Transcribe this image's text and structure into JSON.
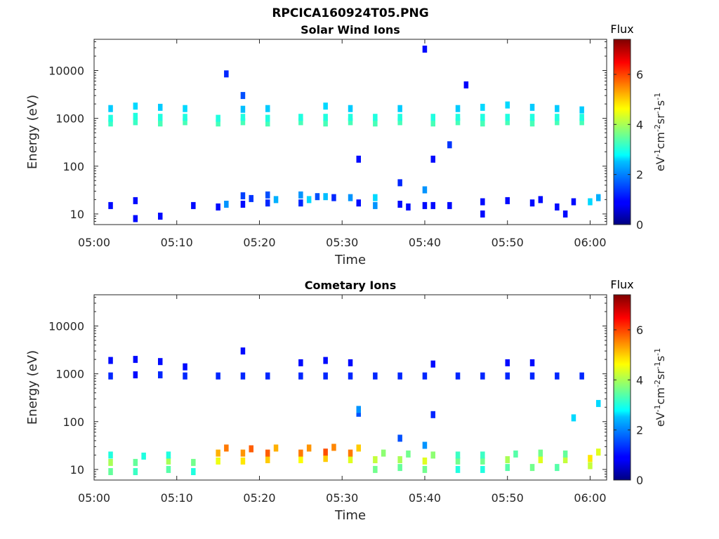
{
  "figure_title": "RPCICA160924T05.PNG",
  "chart_data": [
    {
      "type": "heatmap",
      "title": "Solar Wind Ions",
      "xlabel": "Time",
      "ylabel": "Energy (eV)",
      "y_scale": "log",
      "ylim": [
        6,
        45000
      ],
      "y_ticks": [
        10,
        100,
        1000,
        10000
      ],
      "y_tick_labels": [
        "10",
        "100",
        "1000",
        "10000"
      ],
      "x_tick_labels": [
        "05:00",
        "05:10",
        "05:20",
        "05:30",
        "05:40",
        "05:50",
        "06:00"
      ],
      "xlim": [
        "05:00",
        "06:02"
      ],
      "colorbar": {
        "title": "Flux",
        "label": "eV-1cm-2sr-1s-1",
        "min": 0,
        "max": 7.4,
        "ticks": [
          0,
          2,
          4,
          6
        ],
        "colormap": "jet"
      },
      "grid": false,
      "cells": [
        [
          "05:02",
          800,
          3.2
        ],
        [
          "05:02",
          1000,
          3.0
        ],
        [
          "05:02",
          1600,
          2.4
        ],
        [
          "05:05",
          850,
          3.2
        ],
        [
          "05:05",
          1100,
          3.0
        ],
        [
          "05:05",
          1800,
          2.5
        ],
        [
          "05:08",
          800,
          3.3
        ],
        [
          "05:08",
          1050,
          3.0
        ],
        [
          "05:08",
          1700,
          2.4
        ],
        [
          "05:11",
          850,
          3.3
        ],
        [
          "05:11",
          1050,
          3.0
        ],
        [
          "05:11",
          1600,
          2.5
        ],
        [
          "05:15",
          800,
          3.3
        ],
        [
          "05:15",
          1000,
          3.0
        ],
        [
          "05:18",
          850,
          3.3
        ],
        [
          "05:18",
          1050,
          3.0
        ],
        [
          "05:18",
          1550,
          2.3
        ],
        [
          "05:21",
          800,
          3.3
        ],
        [
          "05:21",
          1000,
          3.0
        ],
        [
          "05:21",
          1600,
          2.4
        ],
        [
          "05:25",
          850,
          3.3
        ],
        [
          "05:25",
          1050,
          3.0
        ],
        [
          "05:28",
          800,
          3.3
        ],
        [
          "05:28",
          1050,
          3.0
        ],
        [
          "05:28",
          1800,
          2.5
        ],
        [
          "05:31",
          850,
          3.3
        ],
        [
          "05:31",
          1050,
          3.0
        ],
        [
          "05:31",
          1600,
          2.4
        ],
        [
          "05:34",
          800,
          3.3
        ],
        [
          "05:34",
          1050,
          3.0
        ],
        [
          "05:37",
          850,
          3.3
        ],
        [
          "05:37",
          1050,
          3.0
        ],
        [
          "05:37",
          1600,
          2.4
        ],
        [
          "05:41",
          800,
          3.3
        ],
        [
          "05:41",
          1050,
          3.0
        ],
        [
          "05:44",
          850,
          3.3
        ],
        [
          "05:44",
          1050,
          3.0
        ],
        [
          "05:44",
          1600,
          2.4
        ],
        [
          "05:47",
          800,
          3.3
        ],
        [
          "05:47",
          1050,
          3.0
        ],
        [
          "05:47",
          1700,
          2.5
        ],
        [
          "05:50",
          850,
          3.3
        ],
        [
          "05:50",
          1050,
          3.0
        ],
        [
          "05:50",
          1900,
          2.5
        ],
        [
          "05:53",
          800,
          3.3
        ],
        [
          "05:53",
          1050,
          3.0
        ],
        [
          "05:53",
          1700,
          2.4
        ],
        [
          "05:56",
          850,
          3.3
        ],
        [
          "05:56",
          1050,
          3.0
        ],
        [
          "05:56",
          1600,
          2.4
        ],
        [
          "05:59",
          850,
          3.3
        ],
        [
          "05:59",
          1050,
          3.0
        ],
        [
          "05:59",
          1500,
          2.4
        ],
        [
          "05:02",
          15,
          1.0
        ],
        [
          "05:05",
          8,
          1.0
        ],
        [
          "05:05",
          19,
          1.0
        ],
        [
          "05:08",
          9,
          1.0
        ],
        [
          "05:12",
          15,
          1.0
        ],
        [
          "05:15",
          14,
          1.0
        ],
        [
          "05:16",
          16,
          2.0
        ],
        [
          "05:18",
          16,
          1.0
        ],
        [
          "05:18",
          24,
          1.4
        ],
        [
          "05:19",
          21,
          1.3
        ],
        [
          "05:21",
          17,
          1.2
        ],
        [
          "05:21",
          25,
          1.5
        ],
        [
          "05:22",
          20,
          2.2
        ],
        [
          "05:25",
          17,
          1.2
        ],
        [
          "05:25",
          25,
          2.0
        ],
        [
          "05:26",
          20,
          2.5
        ],
        [
          "05:27",
          23,
          1.5
        ],
        [
          "05:28",
          23,
          2.3
        ],
        [
          "05:29",
          22,
          1.2
        ],
        [
          "05:31",
          22,
          2.0
        ],
        [
          "05:32",
          17,
          1.0
        ],
        [
          "05:34",
          22,
          2.5
        ],
        [
          "05:34",
          15,
          2.0
        ],
        [
          "05:37",
          16,
          1.0
        ],
        [
          "05:38",
          14,
          1.0
        ],
        [
          "05:40",
          15,
          1.0
        ],
        [
          "05:41",
          15,
          1.0
        ],
        [
          "05:43",
          15,
          1.0
        ],
        [
          "05:47",
          10,
          1.0
        ],
        [
          "05:47",
          18,
          1.0
        ],
        [
          "05:50",
          19,
          1.0
        ],
        [
          "05:53",
          17,
          1.0
        ],
        [
          "05:54",
          20,
          1.0
        ],
        [
          "05:56",
          14,
          1.0
        ],
        [
          "05:57",
          10,
          1.0
        ],
        [
          "05:58",
          18,
          1.0
        ],
        [
          "06:00",
          18,
          2.5
        ],
        [
          "06:01",
          22,
          2.2
        ],
        [
          "05:16",
          8500,
          1.2
        ],
        [
          "05:18",
          3000,
          1.5
        ],
        [
          "05:40",
          28000,
          1.0
        ],
        [
          "05:45",
          5000,
          0.9
        ],
        [
          "05:43",
          280,
          1.3
        ],
        [
          "05:41",
          140,
          1.0
        ],
        [
          "05:32",
          140,
          1.0
        ],
        [
          "05:37",
          45,
          1.2
        ],
        [
          "05:40",
          32,
          2.0
        ]
      ]
    },
    {
      "type": "heatmap",
      "title": "Cometary Ions",
      "xlabel": "Time",
      "ylabel": "Energy (eV)",
      "y_scale": "log",
      "ylim": [
        6,
        45000
      ],
      "y_ticks": [
        10,
        100,
        1000,
        10000
      ],
      "y_tick_labels": [
        "10",
        "100",
        "1000",
        "10000"
      ],
      "x_tick_labels": [
        "05:00",
        "05:10",
        "05:20",
        "05:30",
        "05:40",
        "05:50",
        "06:00"
      ],
      "xlim": [
        "05:00",
        "06:02"
      ],
      "colorbar": {
        "title": "Flux",
        "label": "eV-1cm-2sr-1s-1",
        "min": 0,
        "max": 7.4,
        "ticks": [
          0,
          2,
          4,
          6
        ],
        "colormap": "jet"
      },
      "grid": false,
      "cells": [
        [
          "05:02",
          900,
          1.2
        ],
        [
          "05:02",
          1900,
          1.0
        ],
        [
          "05:05",
          950,
          1.0
        ],
        [
          "05:05",
          2000,
          1.0
        ],
        [
          "05:08",
          950,
          1.2
        ],
        [
          "05:08",
          1800,
          1.0
        ],
        [
          "05:11",
          900,
          1.2
        ],
        [
          "05:11",
          1400,
          1.0
        ],
        [
          "05:15",
          900,
          1.2
        ],
        [
          "05:18",
          900,
          1.2
        ],
        [
          "05:18",
          3000,
          1.0
        ],
        [
          "05:21",
          900,
          1.2
        ],
        [
          "05:25",
          900,
          1.2
        ],
        [
          "05:25",
          1700,
          1.0
        ],
        [
          "05:28",
          900,
          1.2
        ],
        [
          "05:28",
          1900,
          1.0
        ],
        [
          "05:31",
          900,
          1.2
        ],
        [
          "05:31",
          1700,
          1.0
        ],
        [
          "05:34",
          900,
          1.2
        ],
        [
          "05:37",
          900,
          1.2
        ],
        [
          "05:40",
          900,
          1.2
        ],
        [
          "05:41",
          1600,
          1.0
        ],
        [
          "05:44",
          900,
          1.2
        ],
        [
          "05:47",
          900,
          1.2
        ],
        [
          "05:50",
          900,
          1.2
        ],
        [
          "05:50",
          1700,
          1.0
        ],
        [
          "05:53",
          900,
          1.2
        ],
        [
          "05:53",
          1700,
          1.0
        ],
        [
          "05:56",
          900,
          1.2
        ],
        [
          "05:59",
          900,
          1.2
        ],
        [
          "05:32",
          150,
          1.5
        ],
        [
          "05:32",
          180,
          2.0
        ],
        [
          "05:41",
          140,
          1.2
        ],
        [
          "05:37",
          45,
          1.5
        ],
        [
          "05:40",
          32,
          2.0
        ],
        [
          "05:58",
          120,
          2.5
        ],
        [
          "06:01",
          240,
          2.5
        ],
        [
          "05:02",
          9,
          3.5
        ],
        [
          "05:02",
          14,
          4.0
        ],
        [
          "05:02",
          20,
          3.0
        ],
        [
          "05:05",
          9,
          3.2
        ],
        [
          "05:05",
          14,
          3.5
        ],
        [
          "05:06",
          19,
          3.0
        ],
        [
          "05:09",
          10,
          3.4
        ],
        [
          "05:09",
          15,
          4.0
        ],
        [
          "05:09",
          20,
          3.0
        ],
        [
          "05:12",
          9,
          3.0
        ],
        [
          "05:12",
          14,
          3.6
        ],
        [
          "05:15",
          15,
          4.5
        ],
        [
          "05:15",
          22,
          5.2
        ],
        [
          "05:16",
          28,
          5.6
        ],
        [
          "05:18",
          15,
          4.8
        ],
        [
          "05:18",
          22,
          5.4
        ],
        [
          "05:19",
          27,
          5.8
        ],
        [
          "05:21",
          16,
          5.0
        ],
        [
          "05:21",
          22,
          5.8
        ],
        [
          "05:22",
          28,
          5.2
        ],
        [
          "05:25",
          16,
          4.6
        ],
        [
          "05:25",
          22,
          5.6
        ],
        [
          "05:26",
          28,
          5.4
        ],
        [
          "05:28",
          17,
          5.0
        ],
        [
          "05:28",
          23,
          5.9
        ],
        [
          "05:29",
          29,
          5.5
        ],
        [
          "05:31",
          16,
          4.4
        ],
        [
          "05:31",
          22,
          5.6
        ],
        [
          "05:32",
          28,
          5.0
        ],
        [
          "05:34",
          10,
          3.6
        ],
        [
          "05:34",
          16,
          4.2
        ],
        [
          "05:35",
          22,
          3.8
        ],
        [
          "05:37",
          11,
          3.5
        ],
        [
          "05:37",
          16,
          4.0
        ],
        [
          "05:38",
          21,
          3.6
        ],
        [
          "05:40",
          10,
          3.6
        ],
        [
          "05:40",
          15,
          4.4
        ],
        [
          "05:41",
          20,
          3.8
        ],
        [
          "05:44",
          10,
          3.0
        ],
        [
          "05:44",
          15,
          3.6
        ],
        [
          "05:44",
          20,
          3.2
        ],
        [
          "05:47",
          10,
          3.0
        ],
        [
          "05:47",
          15,
          3.6
        ],
        [
          "05:47",
          20,
          3.2
        ],
        [
          "05:50",
          11,
          3.4
        ],
        [
          "05:50",
          16,
          4.0
        ],
        [
          "05:51",
          21,
          3.4
        ],
        [
          "05:53",
          11,
          3.6
        ],
        [
          "05:54",
          16,
          4.4
        ],
        [
          "05:54",
          22,
          3.6
        ],
        [
          "05:56",
          11,
          3.4
        ],
        [
          "05:57",
          16,
          4.2
        ],
        [
          "05:57",
          21,
          3.5
        ],
        [
          "06:00",
          12,
          4.2
        ],
        [
          "06:00",
          17,
          4.8
        ],
        [
          "06:01",
          23,
          4.4
        ]
      ]
    }
  ]
}
